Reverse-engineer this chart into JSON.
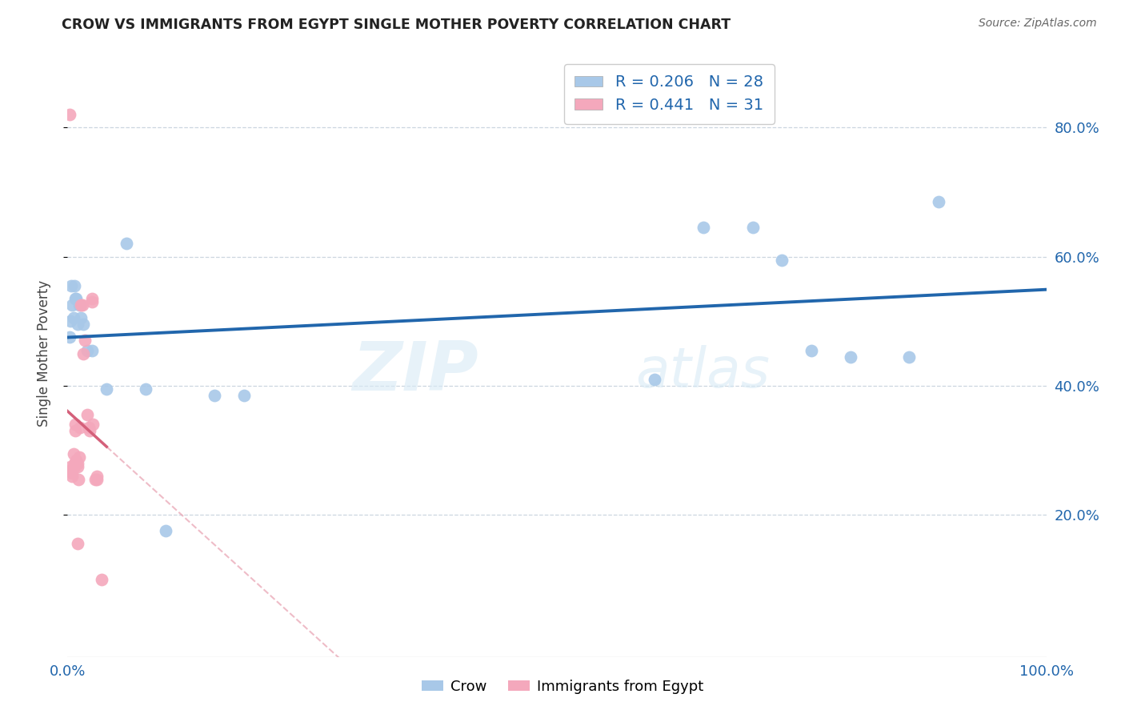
{
  "title": "CROW VS IMMIGRANTS FROM EGYPT SINGLE MOTHER POVERTY CORRELATION CHART",
  "source": "Source: ZipAtlas.com",
  "ylabel": "Single Mother Poverty",
  "crow_color": "#a8c8e8",
  "egypt_color": "#f4a8bc",
  "crow_line_color": "#2166ac",
  "egypt_line_color": "#d4607a",
  "egypt_dashed_color": "#e8a0b0",
  "watermark_zip": "ZIP",
  "watermark_atlas": "atlas",
  "xlim": [
    0.0,
    1.0
  ],
  "ylim": [
    -0.02,
    0.92
  ],
  "yticks": [
    0.2,
    0.4,
    0.6,
    0.8
  ],
  "ytick_labels": [
    "20.0%",
    "40.0%",
    "60.0%",
    "80.0%"
  ],
  "crow_x": [
    0.002,
    0.003,
    0.004,
    0.005,
    0.006,
    0.007,
    0.008,
    0.009,
    0.01,
    0.012,
    0.014,
    0.016,
    0.02,
    0.025,
    0.04,
    0.06,
    0.08,
    0.1,
    0.15,
    0.18,
    0.6,
    0.65,
    0.7,
    0.73,
    0.76,
    0.8,
    0.86,
    0.89
  ],
  "crow_y": [
    0.475,
    0.5,
    0.555,
    0.525,
    0.505,
    0.555,
    0.535,
    0.535,
    0.495,
    0.525,
    0.505,
    0.495,
    0.455,
    0.455,
    0.395,
    0.62,
    0.395,
    0.175,
    0.385,
    0.385,
    0.41,
    0.645,
    0.645,
    0.595,
    0.455,
    0.445,
    0.445,
    0.685
  ],
  "egypt_x": [
    0.002,
    0.003,
    0.004,
    0.005,
    0.005,
    0.006,
    0.007,
    0.007,
    0.008,
    0.008,
    0.009,
    0.01,
    0.01,
    0.011,
    0.012,
    0.013,
    0.014,
    0.015,
    0.016,
    0.018,
    0.02,
    0.022,
    0.023,
    0.025,
    0.025,
    0.026,
    0.028,
    0.03,
    0.03,
    0.035,
    0.01
  ],
  "egypt_y": [
    0.82,
    0.275,
    0.27,
    0.26,
    0.265,
    0.295,
    0.28,
    0.275,
    0.33,
    0.34,
    0.285,
    0.28,
    0.275,
    0.255,
    0.29,
    0.335,
    0.525,
    0.525,
    0.45,
    0.47,
    0.355,
    0.335,
    0.33,
    0.53,
    0.535,
    0.34,
    0.255,
    0.255,
    0.26,
    0.1,
    0.155
  ]
}
